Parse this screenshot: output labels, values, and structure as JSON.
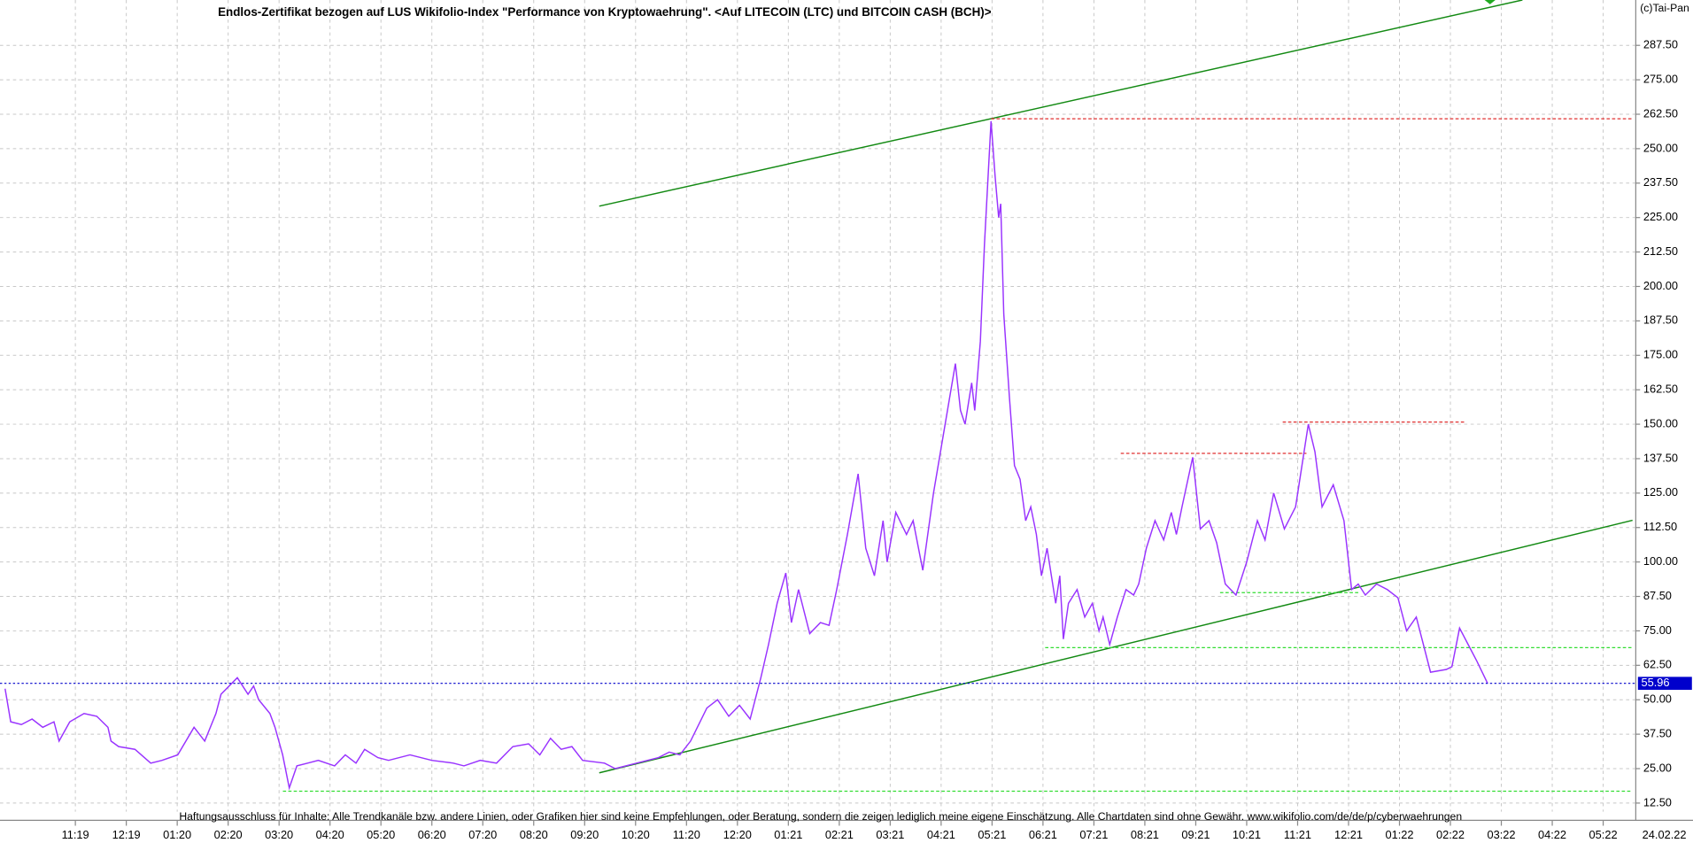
{
  "chart_data": {
    "type": "line",
    "title": "Endlos-Zertifikat bezogen auf LUS Wikifolio-Index \"Performance von Kryptowaehrung\". <Auf LITECOIN (LTC) und BITCOIN CASH (BCH)>",
    "copyright": "(c)Tai-Pan",
    "date": "24.02.22",
    "footer": "Haftungsausschluss für Inhalte: Alle Trendkanäle bzw. andere Linien, oder Grafiken hier sind keine Empfehlungen, oder Beratung, sondern die zeigen lediglich meine eigene Einschätzung. Alle Chartdaten sind ohne Gewähr.  www.wikifolio.com/de/de/p/cyberwaehrungen",
    "current_value": 55.96,
    "grid": true,
    "xlim": [
      -1.48,
      30.64
    ],
    "ylim": [
      9.37,
      303.96
    ],
    "xticks": [
      {
        "value": 0,
        "label": "11:19"
      },
      {
        "value": 1,
        "label": "12:19"
      },
      {
        "value": 2,
        "label": "01:20"
      },
      {
        "value": 3,
        "label": "02:20"
      },
      {
        "value": 4,
        "label": "03:20"
      },
      {
        "value": 5,
        "label": "04:20"
      },
      {
        "value": 6,
        "label": "05:20"
      },
      {
        "value": 7,
        "label": "06:20"
      },
      {
        "value": 8,
        "label": "07:20"
      },
      {
        "value": 9,
        "label": "08:20"
      },
      {
        "value": 10,
        "label": "09:20"
      },
      {
        "value": 11,
        "label": "10:20"
      },
      {
        "value": 12,
        "label": "11:20"
      },
      {
        "value": 13,
        "label": "12:20"
      },
      {
        "value": 14,
        "label": "01:21"
      },
      {
        "value": 15,
        "label": "02:21"
      },
      {
        "value": 16,
        "label": "03:21"
      },
      {
        "value": 17,
        "label": "04:21"
      },
      {
        "value": 18,
        "label": "05:21"
      },
      {
        "value": 19,
        "label": "06:21"
      },
      {
        "value": 20,
        "label": "07:21"
      },
      {
        "value": 21,
        "label": "08:21"
      },
      {
        "value": 22,
        "label": "09:21"
      },
      {
        "value": 23,
        "label": "10:21"
      },
      {
        "value": 24,
        "label": "11:21"
      },
      {
        "value": 25,
        "label": "12:21"
      },
      {
        "value": 26,
        "label": "01:22"
      },
      {
        "value": 27,
        "label": "02:22"
      },
      {
        "value": 28,
        "label": "03:22"
      },
      {
        "value": 29,
        "label": "04:22"
      },
      {
        "value": 30,
        "label": "05:22"
      }
    ],
    "yticks": [
      {
        "value": 12.5,
        "label": "12.50"
      },
      {
        "value": 25,
        "label": "25.00"
      },
      {
        "value": 37.5,
        "label": "37.50"
      },
      {
        "value": 50,
        "label": "50.00"
      },
      {
        "value": 62.5,
        "label": "62.50"
      },
      {
        "value": 75,
        "label": "75.00"
      },
      {
        "value": 87.5,
        "label": "87.50"
      },
      {
        "value": 100,
        "label": "100.00"
      },
      {
        "value": 112.5,
        "label": "112.50"
      },
      {
        "value": 125,
        "label": "125.00"
      },
      {
        "value": 137.5,
        "label": "137.50"
      },
      {
        "value": 150,
        "label": "150.00"
      },
      {
        "value": 162.5,
        "label": "162.50"
      },
      {
        "value": 175,
        "label": "175.00"
      },
      {
        "value": 187.5,
        "label": "187.50"
      },
      {
        "value": 200,
        "label": "200.00"
      },
      {
        "value": 212.5,
        "label": "212.50"
      },
      {
        "value": 225,
        "label": "225.00"
      },
      {
        "value": 237.5,
        "label": "237.50"
      },
      {
        "value": 250,
        "label": "250.00"
      },
      {
        "value": 262.5,
        "label": "262.50"
      },
      {
        "value": 275,
        "label": "275.00"
      },
      {
        "value": 287.5,
        "label": "287.50"
      }
    ],
    "series": [
      {
        "color": "#9933ff",
        "x": [
          -1.38,
          -1.27,
          -1.06,
          -0.85,
          -0.64,
          -0.42,
          -0.32,
          -0.11,
          0.17,
          0.42,
          0.64,
          0.7,
          0.85,
          1.17,
          1.48,
          1.7,
          2.01,
          2.33,
          2.54,
          2.76,
          2.86,
          3.18,
          3.39,
          3.5,
          3.6,
          3.82,
          3.92,
          4.07,
          4.2,
          4.35,
          4.56,
          4.77,
          5.09,
          5.3,
          5.51,
          5.68,
          5.94,
          6.15,
          6.57,
          7.0,
          7.42,
          7.63,
          7.95,
          8.27,
          8.59,
          8.9,
          9.12,
          9.33,
          9.54,
          9.75,
          9.96,
          10.39,
          10.6,
          11.02,
          11.45,
          11.66,
          11.87,
          12.08,
          12.4,
          12.61,
          12.83,
          13.04,
          13.25,
          13.46,
          13.61,
          13.78,
          13.95,
          14.06,
          14.2,
          14.42,
          14.63,
          14.8,
          14.95,
          15.16,
          15.37,
          15.52,
          15.69,
          15.86,
          15.94,
          16.11,
          16.32,
          16.45,
          16.64,
          16.85,
          17.28,
          17.38,
          17.47,
          17.6,
          17.66,
          17.77,
          17.85,
          17.98,
          18.06,
          18.13,
          18.17,
          18.23,
          18.34,
          18.44,
          18.55,
          18.66,
          18.76,
          18.87,
          18.97,
          19.08,
          19.25,
          19.33,
          19.4,
          19.5,
          19.67,
          19.82,
          19.97,
          20.1,
          20.18,
          20.31,
          20.46,
          20.63,
          20.78,
          20.88,
          21.03,
          21.2,
          21.37,
          21.52,
          21.62,
          21.73,
          21.94,
          22.09,
          22.26,
          22.41,
          22.58,
          22.79,
          23.0,
          23.21,
          23.36,
          23.53,
          23.74,
          23.96,
          24.21,
          24.34,
          24.48,
          24.7,
          24.91,
          25.06,
          25.19,
          25.33,
          25.55,
          25.76,
          25.97,
          26.14,
          26.33,
          26.61,
          26.92,
          27.03,
          27.18,
          27.35,
          27.52,
          27.73
        ],
        "values": [
          54,
          42,
          41,
          43,
          40,
          42,
          35,
          42,
          45,
          44,
          40,
          35,
          33,
          32,
          27,
          28,
          30,
          40,
          35,
          45,
          52,
          58,
          52,
          55,
          50,
          45,
          40,
          30,
          18,
          26,
          27,
          28,
          26,
          30,
          27,
          32,
          29,
          28,
          30,
          28,
          27,
          26,
          28,
          27,
          33,
          34,
          30,
          36,
          32,
          33,
          28,
          27,
          25,
          27,
          29,
          31,
          30,
          35,
          47,
          50,
          44,
          48,
          43,
          58,
          70,
          85,
          96,
          78,
          90,
          74,
          78,
          77,
          90,
          110,
          132,
          105,
          95,
          115,
          100,
          118,
          110,
          115,
          97,
          125,
          172,
          155,
          150,
          165,
          155,
          180,
          215,
          260,
          240,
          225,
          230,
          190,
          160,
          135,
          130,
          115,
          120,
          110,
          95,
          105,
          85,
          95,
          72,
          85,
          90,
          80,
          85,
          75,
          80,
          70,
          80,
          90,
          88,
          92,
          105,
          115,
          108,
          118,
          110,
          120,
          138,
          112,
          115,
          107,
          92,
          88,
          100,
          115,
          108,
          125,
          112,
          120,
          150,
          140,
          120,
          128,
          115,
          90,
          92,
          88,
          92,
          90,
          87,
          75,
          80,
          60,
          61,
          62,
          76,
          70,
          64,
          55.96
        ]
      }
    ]
  }
}
